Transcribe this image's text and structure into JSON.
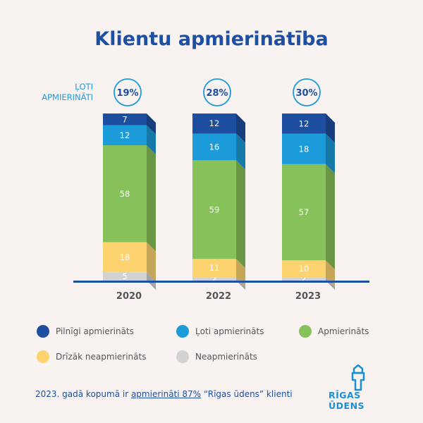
{
  "title": "Klientu apmierinātība",
  "very_satisfied_label": [
    "ĻOTI",
    "APMIERINĀTI"
  ],
  "chart_data": {
    "type": "stacked_bar",
    "categories": [
      "2020",
      "2022",
      "2023"
    ],
    "totals_badge": [
      "19%",
      "28%",
      "30%"
    ],
    "series": [
      {
        "name": "Neapmierināts",
        "color": "#d3d2d3",
        "values": [
          5,
          2,
          2
        ]
      },
      {
        "name": "Drīzāk neapmierināts",
        "color": "#fdd36f",
        "values": [
          18,
          11,
          10
        ]
      },
      {
        "name": "Apmierināts",
        "color": "#86c15a",
        "values": [
          58,
          59,
          57
        ]
      },
      {
        "name": "Ļoti apmierināts",
        "color": "#1b9bd9",
        "values": [
          12,
          16,
          18
        ]
      },
      {
        "name": "Pilnīgi apmierināts",
        "color": "#1e4ea0",
        "values": [
          7,
          12,
          12
        ]
      }
    ],
    "ylim": [
      0,
      100
    ]
  },
  "legend": [
    {
      "label": "Pilnīgi apmierināts",
      "color": "#1e4ea0"
    },
    {
      "label": "Ļoti apmierināts",
      "color": "#1b9bd9"
    },
    {
      "label": "Apmierināts",
      "color": "#86c15a"
    },
    {
      "label": "Drīzāk neapmierināts",
      "color": "#fdd36f"
    },
    {
      "label": "Neapmierināts",
      "color": "#d3d2d3"
    }
  ],
  "footer": {
    "prefix": "2023. gadā kopumā ir ",
    "highlight": "apmierināti 87%",
    "suffix": " “Rīgas ūdens” klienti"
  },
  "logo_text": "RĪGAS ŪDENS"
}
